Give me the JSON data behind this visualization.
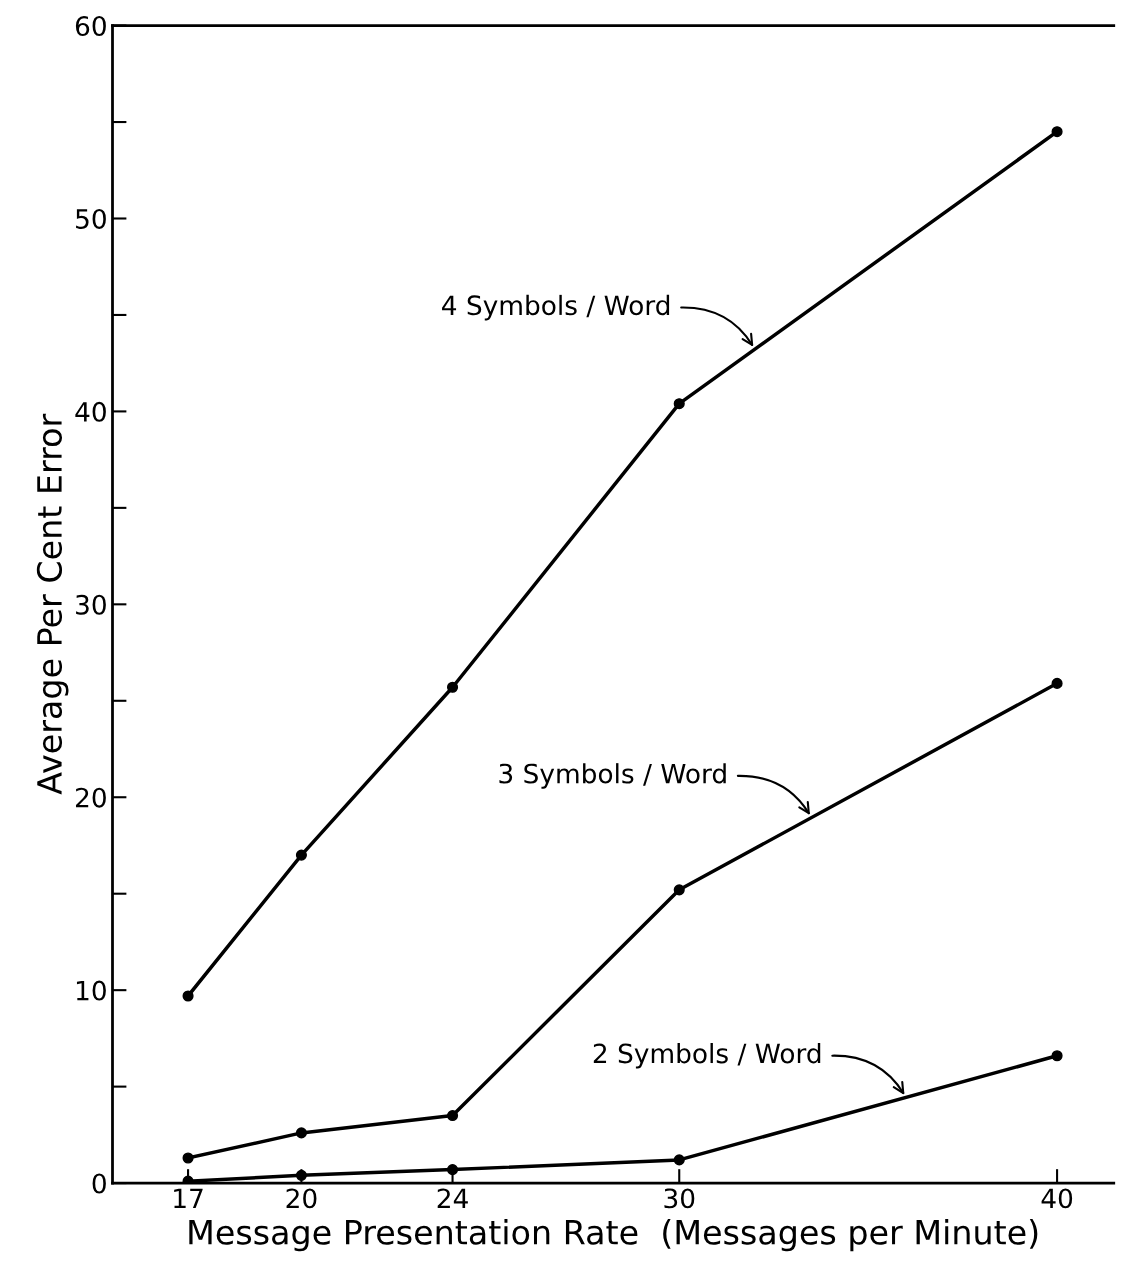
{
  "chart_data": {
    "type": "line",
    "xlabel": "Message Presentation Rate  (Messages per Minute)",
    "ylabel": "Average Per Cent Error",
    "x": [
      17,
      20,
      24,
      30,
      40
    ],
    "series": [
      {
        "name": "4 Symbols / Word",
        "color": "#000000",
        "values": [
          9.7,
          17.0,
          25.7,
          40.4,
          54.5
        ]
      },
      {
        "name": "3 Symbols / Word",
        "color": "#000000",
        "values": [
          1.3,
          2.6,
          3.5,
          15.2,
          25.9
        ]
      },
      {
        "name": "2 Symbols / Word",
        "color": "#000000",
        "values": [
          0.1,
          0.4,
          0.7,
          1.2,
          6.6
        ]
      }
    ],
    "xlim": [
      15,
      41.5
    ],
    "xticks": [
      17,
      20,
      24,
      30,
      40
    ],
    "ylim": [
      0,
      60
    ],
    "yticks": [
      0,
      {
        "value": 5,
        "label": null
      },
      10,
      {
        "value": 15,
        "label": null
      },
      20,
      {
        "value": 25,
        "label": null
      },
      30,
      {
        "value": 35,
        "label": null
      },
      40,
      {
        "value": 45,
        "label": null
      },
      50,
      {
        "value": 55,
        "label": null
      },
      60
    ],
    "grid": false,
    "legend": false,
    "marker": "circle",
    "line_style": "solid"
  }
}
